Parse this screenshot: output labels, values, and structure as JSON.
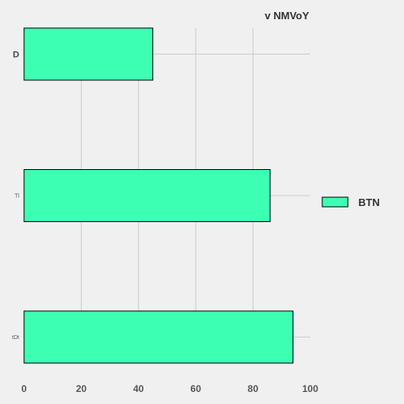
{
  "chart_data": {
    "type": "bar",
    "orientation": "horizontal",
    "title": "v NMVoY",
    "categories": [
      "D",
      "Tl",
      "tDt"
    ],
    "series": [
      {
        "name": "BTN",
        "values": [
          45,
          86,
          94
        ],
        "color": "#3dffb4"
      }
    ],
    "xlim": [
      0,
      100
    ],
    "xticks": [
      0,
      20,
      40,
      60,
      80,
      100
    ],
    "grid": true,
    "legend_position": "right"
  }
}
